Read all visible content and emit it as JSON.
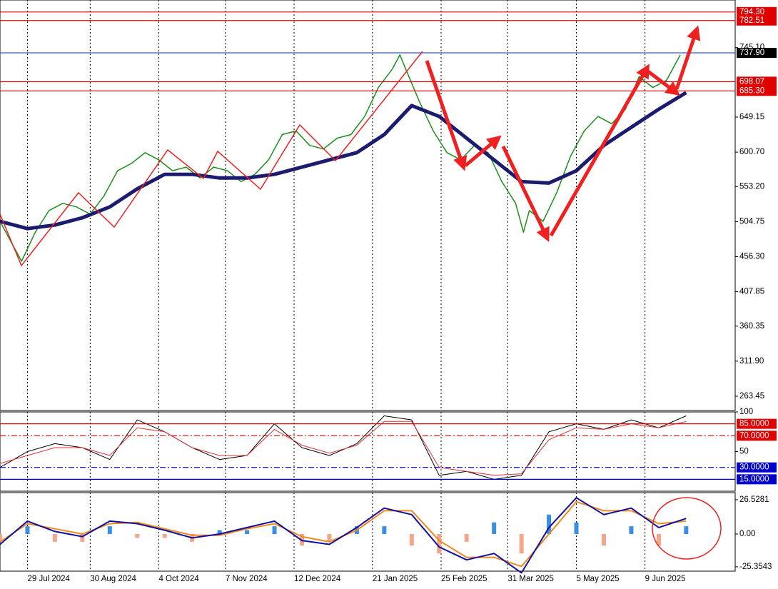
{
  "chart_data": [
    {
      "type": "line",
      "xlim": [
        "2024-07-15",
        "2025-07-25"
      ],
      "ylim": [
        243.7,
        810.9
      ],
      "yticks": [
        {
          "value": 745.1,
          "label": "745.10"
        },
        649.15,
        {
          "value": 600.7,
          "label": "600.70"
        },
        {
          "value": 553.2,
          "label": "553.20"
        },
        504.75,
        {
          "value": 456.3,
          "label": "456.30"
        },
        407.85,
        360.35,
        {
          "value": 311.9,
          "label": "311.90"
        },
        263.45
      ],
      "levels": [
        {
          "value": 794.3,
          "label": "794.30",
          "color": "#e00000",
          "fill": "#e00000",
          "dash": "solid"
        },
        {
          "value": 782.51,
          "label": "782.51",
          "color": "#e00000",
          "fill": "#e00000",
          "dash": "solid"
        },
        {
          "value": 737.9,
          "label": "737.90",
          "color": "#3355dd",
          "fill": "#000000",
          "dash": "solid"
        },
        {
          "value": 698.07,
          "label": "698.07",
          "color": "#e00000",
          "fill": "#e00000",
          "dash": "solid"
        },
        {
          "value": 685.3,
          "label": "685.30",
          "color": "#e00000",
          "fill": "#e00000",
          "dash": "solid"
        }
      ],
      "series": [
        {
          "kind": "line",
          "color": "#1a8f1a",
          "width": 1.5,
          "x": [
            "2024-07-15",
            "2024-07-22",
            "2024-07-26",
            "2024-08-02",
            "2024-08-09",
            "2024-08-16",
            "2024-08-23",
            "2024-08-30",
            "2024-09-06",
            "2024-09-13",
            "2024-09-20",
            "2024-09-27",
            "2024-10-04",
            "2024-10-11",
            "2024-10-18",
            "2024-10-25",
            "2024-11-01",
            "2024-11-08",
            "2024-11-15",
            "2024-11-22",
            "2024-11-29",
            "2024-12-06",
            "2024-12-13",
            "2024-12-20",
            "2024-12-27",
            "2025-01-03",
            "2025-01-10",
            "2025-01-17",
            "2025-01-24",
            "2025-01-31",
            "2025-02-04",
            "2025-02-07",
            "2025-02-14",
            "2025-02-21",
            "2025-02-28",
            "2025-03-07",
            "2025-03-14",
            "2025-03-21",
            "2025-03-28",
            "2025-04-04",
            "2025-04-08",
            "2025-04-11",
            "2025-04-18",
            "2025-04-25",
            "2025-05-02",
            "2025-05-09",
            "2025-05-16",
            "2025-05-23",
            "2025-05-30",
            "2025-06-06",
            "2025-06-13",
            "2025-06-20",
            "2025-06-27"
          ],
          "values": [
            505,
            470,
            450,
            490,
            520,
            530,
            525,
            515,
            540,
            575,
            585,
            600,
            590,
            575,
            580,
            565,
            580,
            575,
            560,
            570,
            590,
            625,
            630,
            610,
            605,
            620,
            625,
            650,
            690,
            715,
            735,
            715,
            670,
            630,
            600,
            590,
            610,
            600,
            560,
            530,
            490,
            520,
            505,
            545,
            595,
            630,
            650,
            640,
            660,
            705,
            690,
            700,
            735
          ]
        },
        {
          "kind": "line",
          "color": "#1c1c6e",
          "width": 5,
          "x": [
            "2024-07-15",
            "2024-07-29",
            "2024-08-12",
            "2024-08-26",
            "2024-09-09",
            "2024-09-23",
            "2024-10-07",
            "2024-10-21",
            "2024-11-04",
            "2024-11-18",
            "2024-12-02",
            "2024-12-16",
            "2024-12-30",
            "2025-01-13",
            "2025-01-27",
            "2025-02-10",
            "2025-02-24",
            "2025-03-10",
            "2025-03-24",
            "2025-04-07",
            "2025-04-21",
            "2025-05-05",
            "2025-05-19",
            "2025-06-02",
            "2025-06-16",
            "2025-06-30"
          ],
          "values": [
            505,
            495,
            500,
            510,
            525,
            550,
            570,
            570,
            565,
            565,
            570,
            580,
            590,
            600,
            625,
            665,
            650,
            620,
            590,
            560,
            558,
            575,
            610,
            635,
            660,
            683
          ]
        }
      ]
    },
    {
      "type": "line",
      "xlim": [
        "2024-07-15",
        "2025-07-25"
      ],
      "ylim": [
        0,
        100
      ],
      "yticks": [
        100,
        50
      ],
      "levels": [
        {
          "value": 85,
          "label": "85.0000",
          "color": "#e00000",
          "fill": "#e00000",
          "dash": "solid"
        },
        {
          "value": 70,
          "label": "70.0000",
          "color": "#e00000",
          "fill": "#e00000",
          "dash": "dashdot"
        },
        {
          "value": 30,
          "label": "30.0000",
          "color": "#0000cc",
          "fill": "#0000cc",
          "dash": "dashdot"
        },
        {
          "value": 15,
          "label": "15.0000",
          "color": "#0000cc",
          "fill": "#0000cc",
          "dash": "solid"
        }
      ],
      "series": [
        {
          "kind": "line",
          "color": "#000000",
          "width": 1,
          "x": [
            "2024-07-15",
            "2024-07-29",
            "2024-08-12",
            "2024-08-26",
            "2024-09-09",
            "2024-09-23",
            "2024-10-07",
            "2024-10-21",
            "2024-11-04",
            "2024-11-18",
            "2024-12-02",
            "2024-12-16",
            "2024-12-30",
            "2025-01-13",
            "2025-01-27",
            "2025-02-10",
            "2025-02-24",
            "2025-03-10",
            "2025-03-24",
            "2025-04-07",
            "2025-04-21",
            "2025-05-05",
            "2025-05-19",
            "2025-06-02",
            "2025-06-16",
            "2025-06-30"
          ],
          "values": [
            30,
            50,
            60,
            55,
            40,
            90,
            75,
            55,
            40,
            45,
            85,
            55,
            45,
            60,
            95,
            90,
            20,
            25,
            15,
            20,
            75,
            85,
            78,
            90,
            80,
            95
          ]
        },
        {
          "kind": "line",
          "color": "#e03030",
          "width": 1,
          "x": [
            "2024-07-15",
            "2024-07-29",
            "2024-08-12",
            "2024-08-26",
            "2024-09-09",
            "2024-09-23",
            "2024-10-07",
            "2024-10-21",
            "2024-11-04",
            "2024-11-18",
            "2024-12-02",
            "2024-12-16",
            "2024-12-30",
            "2025-01-13",
            "2025-01-27",
            "2025-02-10",
            "2025-02-24",
            "2025-03-10",
            "2025-03-24",
            "2025-04-07",
            "2025-04-21",
            "2025-05-05",
            "2025-05-19",
            "2025-06-02",
            "2025-06-16",
            "2025-06-30"
          ],
          "values": [
            35,
            45,
            55,
            55,
            45,
            80,
            75,
            55,
            45,
            45,
            78,
            58,
            48,
            58,
            88,
            88,
            30,
            25,
            20,
            22,
            65,
            80,
            78,
            85,
            80,
            88
          ]
        }
      ]
    },
    {
      "type": "line",
      "xlim": [
        "2024-07-15",
        "2025-07-25"
      ],
      "ylim": [
        -28.7,
        32
      ],
      "yticks": [
        26.5281,
        {
          "value": 0,
          "label": "0.00"
        },
        -25.3543
      ],
      "xticks": [
        {
          "value": "2024-07-29",
          "label": "29 Jul 2024"
        },
        {
          "value": "2024-08-30",
          "label": "30 Aug 2024"
        },
        {
          "value": "2024-10-04",
          "label": "4 Oct 2024"
        },
        {
          "value": "2024-11-07",
          "label": "7 Nov 2024"
        },
        {
          "value": "2024-12-12",
          "label": "12 Dec 2024"
        },
        {
          "value": "2025-01-21",
          "label": "21 Jan 2025"
        },
        {
          "value": "2025-02-25",
          "label": "25 Feb 2025"
        },
        {
          "value": "2025-03-31",
          "label": "31 Mar 2025"
        },
        {
          "value": "2025-05-05",
          "label": "5 May 2025"
        },
        {
          "value": "2025-06-09",
          "label": "9 Jun 2025"
        }
      ],
      "series": [
        {
          "kind": "bar",
          "positive_color": "#3a8ee6",
          "negative_color": "#f4a58a",
          "x": [
            "2024-07-15",
            "2024-07-29",
            "2024-08-12",
            "2024-08-26",
            "2024-09-09",
            "2024-09-23",
            "2024-10-07",
            "2024-10-21",
            "2024-11-04",
            "2024-11-18",
            "2024-12-02",
            "2024-12-16",
            "2024-12-30",
            "2025-01-13",
            "2025-01-27",
            "2025-02-10",
            "2025-02-24",
            "2025-03-10",
            "2025-03-24",
            "2025-04-07",
            "2025-04-21",
            "2025-05-05",
            "2025-05-19",
            "2025-06-02",
            "2025-06-16",
            "2025-06-30"
          ],
          "values": [
            -6,
            6,
            -6,
            -6,
            6,
            -3,
            -3,
            -6,
            3,
            3,
            6,
            -9,
            -6,
            6,
            6,
            -9,
            -15,
            -6,
            9,
            -15,
            15,
            9,
            -9,
            6,
            -9,
            6
          ]
        },
        {
          "kind": "line",
          "color": "#f08a20",
          "width": 2,
          "x": [
            "2024-07-15",
            "2024-07-29",
            "2024-08-12",
            "2024-08-26",
            "2024-09-09",
            "2024-09-23",
            "2024-10-07",
            "2024-10-21",
            "2024-11-04",
            "2024-11-18",
            "2024-12-02",
            "2024-12-16",
            "2024-12-30",
            "2025-01-13",
            "2025-01-27",
            "2025-02-10",
            "2025-02-24",
            "2025-03-10",
            "2025-03-24",
            "2025-04-07",
            "2025-04-21",
            "2025-05-05",
            "2025-05-19",
            "2025-06-02",
            "2025-06-16",
            "2025-06-30"
          ],
          "values": [
            -6,
            8,
            4,
            0,
            8,
            9,
            4,
            -1,
            -1,
            4,
            8,
            -2,
            -6,
            3,
            18,
            18,
            -5,
            -18,
            -18,
            -25,
            0,
            25,
            18,
            18,
            8,
            10
          ]
        },
        {
          "kind": "line",
          "color": "#1010a0",
          "width": 2,
          "x": [
            "2024-07-15",
            "2024-07-29",
            "2024-08-12",
            "2024-08-26",
            "2024-09-09",
            "2024-09-23",
            "2024-10-07",
            "2024-10-21",
            "2024-11-04",
            "2024-11-18",
            "2024-12-02",
            "2024-12-16",
            "2024-12-30",
            "2025-01-13",
            "2025-01-27",
            "2025-02-10",
            "2025-02-24",
            "2025-03-10",
            "2025-03-24",
            "2025-04-07",
            "2025-04-21",
            "2025-05-05",
            "2025-05-19",
            "2025-06-02",
            "2025-06-16",
            "2025-06-30"
          ],
          "values": [
            -8,
            10,
            2,
            -2,
            10,
            8,
            3,
            -3,
            0,
            5,
            10,
            -5,
            -8,
            5,
            20,
            15,
            -10,
            -20,
            -15,
            -30,
            5,
            28,
            15,
            20,
            5,
            12
          ]
        }
      ]
    }
  ]
}
